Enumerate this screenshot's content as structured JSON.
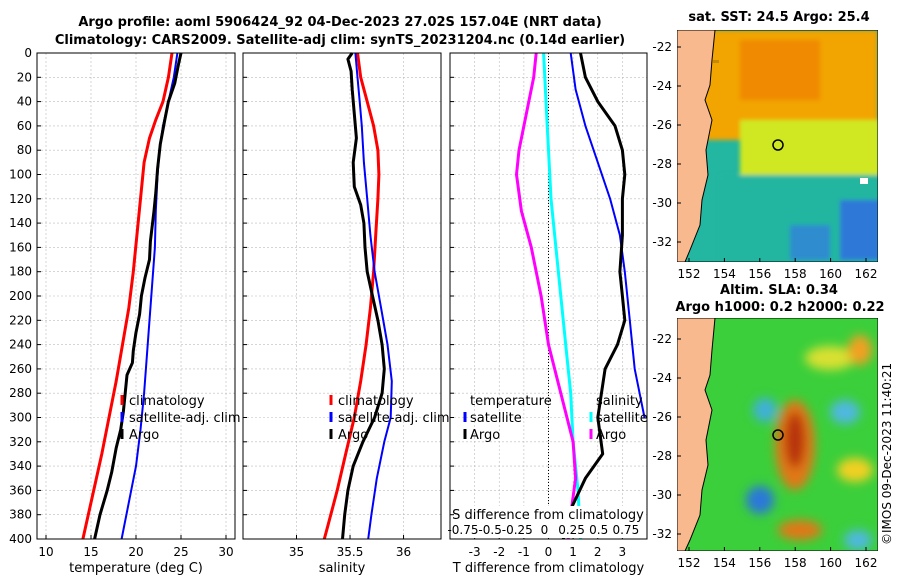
{
  "header": {
    "title_line1": "Argo profile: aoml 5906424_92 04-Dec-2023 27.02S 157.04E (NRT data)",
    "title_line2": "Climatology: CARS2009. Satellite-adj clim: synTS_20231204.nc (0.14d earlier)"
  },
  "chart_data": [
    {
      "type": "line",
      "title": "",
      "xlabel": "temperature (deg C)",
      "ylabel": "",
      "xlim": [
        9,
        31
      ],
      "ylim": [
        400,
        0
      ],
      "xticks": [
        10,
        15,
        20,
        25,
        30
      ],
      "yticks": [
        0,
        20,
        40,
        60,
        80,
        100,
        120,
        140,
        160,
        180,
        200,
        220,
        240,
        260,
        280,
        300,
        320,
        340,
        360,
        380,
        400
      ],
      "legend": [
        "climatology",
        "satellite-adj. clim",
        "Argo"
      ],
      "series": [
        {
          "name": "climatology",
          "color": "#ff0000",
          "points": [
            [
              24.0,
              0
            ],
            [
              23.6,
              20
            ],
            [
              23.0,
              40
            ],
            [
              22.2,
              55
            ],
            [
              21.5,
              70
            ],
            [
              20.9,
              90
            ],
            [
              20.5,
              120
            ],
            [
              20.1,
              150
            ],
            [
              19.7,
              180
            ],
            [
              19.2,
              210
            ],
            [
              18.5,
              240
            ],
            [
              17.8,
              270
            ],
            [
              17.0,
              300
            ],
            [
              16.2,
              330
            ],
            [
              15.3,
              360
            ],
            [
              14.4,
              390
            ],
            [
              14.1,
              400
            ]
          ],
          "stroke_width": 3
        },
        {
          "name": "satellite-adj. clim",
          "color": "#0000ff",
          "points": [
            [
              24.6,
              0
            ],
            [
              24.2,
              20
            ],
            [
              23.6,
              40
            ],
            [
              23.0,
              60
            ],
            [
              22.6,
              80
            ],
            [
              22.4,
              100
            ],
            [
              22.2,
              130
            ],
            [
              22.1,
              160
            ],
            [
              21.8,
              190
            ],
            [
              21.5,
              220
            ],
            [
              21.2,
              250
            ],
            [
              20.9,
              280
            ],
            [
              20.5,
              310
            ],
            [
              20.0,
              340
            ],
            [
              19.2,
              370
            ],
            [
              18.4,
              400
            ]
          ],
          "stroke_width": 2
        },
        {
          "name": "Argo",
          "color": "#000000",
          "points": [
            [
              25.0,
              0
            ],
            [
              24.7,
              10
            ],
            [
              24.3,
              25
            ],
            [
              23.6,
              40
            ],
            [
              23.2,
              55
            ],
            [
              22.7,
              75
            ],
            [
              22.4,
              95
            ],
            [
              22.2,
              115
            ],
            [
              22.0,
              130
            ],
            [
              21.6,
              155
            ],
            [
              21.5,
              170
            ],
            [
              21.0,
              185
            ],
            [
              20.6,
              200
            ],
            [
              20.4,
              215
            ],
            [
              20.0,
              230
            ],
            [
              19.7,
              245
            ],
            [
              19.6,
              255
            ],
            [
              19.0,
              265
            ],
            [
              18.8,
              280
            ],
            [
              18.6,
              295
            ],
            [
              18.3,
              310
            ],
            [
              17.8,
              325
            ],
            [
              17.3,
              345
            ],
            [
              16.8,
              360
            ],
            [
              16.0,
              380
            ],
            [
              15.4,
              400
            ]
          ],
          "stroke_width": 3
        }
      ]
    },
    {
      "type": "line",
      "title": "",
      "xlabel": "salinity",
      "ylabel": "",
      "xlim": [
        34.5,
        36.35
      ],
      "ylim": [
        400,
        0
      ],
      "xticks": [
        35,
        35.5,
        36
      ],
      "legend": [
        "climatology",
        "satellite-adj. clim",
        "Argo"
      ],
      "series": [
        {
          "name": "climatology",
          "color": "#ff0000",
          "points": [
            [
              35.57,
              0
            ],
            [
              35.6,
              20
            ],
            [
              35.66,
              40
            ],
            [
              35.72,
              60
            ],
            [
              35.76,
              80
            ],
            [
              35.77,
              100
            ],
            [
              35.76,
              120
            ],
            [
              35.74,
              150
            ],
            [
              35.72,
              180
            ],
            [
              35.69,
              210
            ],
            [
              35.65,
              240
            ],
            [
              35.6,
              270
            ],
            [
              35.54,
              300
            ],
            [
              35.46,
              330
            ],
            [
              35.38,
              360
            ],
            [
              35.29,
              390
            ],
            [
              35.26,
              400
            ]
          ],
          "stroke_width": 3
        },
        {
          "name": "satellite-adj. clim",
          "color": "#0000ff",
          "points": [
            [
              35.55,
              0
            ],
            [
              35.57,
              20
            ],
            [
              35.59,
              40
            ],
            [
              35.61,
              60
            ],
            [
              35.63,
              90
            ],
            [
              35.66,
              120
            ],
            [
              35.69,
              150
            ],
            [
              35.73,
              180
            ],
            [
              35.79,
              210
            ],
            [
              35.85,
              240
            ],
            [
              35.89,
              270
            ],
            [
              35.88,
              300
            ],
            [
              35.82,
              320
            ],
            [
              35.75,
              350
            ],
            [
              35.7,
              380
            ],
            [
              35.67,
              400
            ]
          ],
          "stroke_width": 2
        },
        {
          "name": "Argo",
          "color": "#000000",
          "points": [
            [
              35.52,
              0
            ],
            [
              35.48,
              5
            ],
            [
              35.51,
              15
            ],
            [
              35.52,
              30
            ],
            [
              35.54,
              50
            ],
            [
              35.56,
              70
            ],
            [
              35.53,
              90
            ],
            [
              35.54,
              110
            ],
            [
              35.6,
              125
            ],
            [
              35.63,
              140
            ],
            [
              35.64,
              160
            ],
            [
              35.66,
              180
            ],
            [
              35.71,
              200
            ],
            [
              35.76,
              220
            ],
            [
              35.8,
              240
            ],
            [
              35.82,
              260
            ],
            [
              35.8,
              280
            ],
            [
              35.73,
              300
            ],
            [
              35.62,
              320
            ],
            [
              35.53,
              340
            ],
            [
              35.48,
              360
            ],
            [
              35.45,
              380
            ],
            [
              35.43,
              400
            ]
          ],
          "stroke_width": 3
        }
      ]
    },
    {
      "type": "line",
      "title": "",
      "xlabel": "T difference from climatology",
      "xlabel_top": "S difference from climatology",
      "ylabel": "",
      "xlim": [
        -4,
        4
      ],
      "ylim": [
        400,
        0
      ],
      "xticks": [
        -3,
        -2,
        -1,
        0,
        1,
        2,
        3
      ],
      "top_xtick_labels": [
        "-0.75",
        "-0.5",
        "-0.25",
        "0",
        "0.25",
        "0.5",
        "0.75"
      ],
      "legend_left": [
        "temperature",
        "satellite",
        "Argo"
      ],
      "legend_right": [
        "salinity",
        "satellite",
        "Argo"
      ],
      "series": [
        {
          "name": "T satellite",
          "color": "#00ffff",
          "points": [
            [
              -0.2,
              0
            ],
            [
              -0.1,
              40
            ],
            [
              0.0,
              80
            ],
            [
              0.1,
              120
            ],
            [
              0.3,
              160
            ],
            [
              0.5,
              200
            ],
            [
              0.7,
              240
            ],
            [
              0.9,
              280
            ],
            [
              1.0,
              320
            ],
            [
              1.2,
              360
            ],
            [
              1.3,
              400
            ]
          ],
          "stroke_width": 3
        },
        {
          "name": "T Argo",
          "color": "#ff00ff",
          "points": [
            [
              -0.5,
              0
            ],
            [
              -0.6,
              20
            ],
            [
              -0.8,
              40
            ],
            [
              -1.0,
              60
            ],
            [
              -1.2,
              80
            ],
            [
              -1.3,
              100
            ],
            [
              -1.1,
              130
            ],
            [
              -0.7,
              160
            ],
            [
              -0.3,
              200
            ],
            [
              0.0,
              240
            ],
            [
              0.5,
              280
            ],
            [
              1.0,
              320
            ],
            [
              1.1,
              350
            ],
            [
              0.9,
              380
            ],
            [
              0.8,
              400
            ]
          ],
          "stroke_width": 3
        },
        {
          "name": "S satellite",
          "color": "#0000ff",
          "points": [
            [
              0.9,
              0
            ],
            [
              1.1,
              30
            ],
            [
              1.5,
              60
            ],
            [
              2.0,
              90
            ],
            [
              2.5,
              120
            ],
            [
              2.9,
              150
            ],
            [
              3.1,
              180
            ],
            [
              3.3,
              220
            ],
            [
              3.5,
              260
            ],
            [
              3.9,
              300
            ]
          ],
          "stroke_width": 2
        },
        {
          "name": "S Argo",
          "color": "#000000",
          "points": [
            [
              1.3,
              0
            ],
            [
              1.5,
              20
            ],
            [
              2.0,
              40
            ],
            [
              2.7,
              60
            ],
            [
              3.0,
              80
            ],
            [
              3.1,
              100
            ],
            [
              3.0,
              120
            ],
            [
              3.0,
              150
            ],
            [
              2.9,
              180
            ],
            [
              3.0,
              200
            ],
            [
              3.1,
              220
            ],
            [
              2.8,
              240
            ],
            [
              2.3,
              260
            ],
            [
              2.0,
              300
            ],
            [
              2.2,
              330
            ],
            [
              1.5,
              350
            ],
            [
              0.8,
              380
            ],
            [
              0.6,
              400
            ]
          ],
          "stroke_width": 3
        }
      ]
    }
  ],
  "maps": {
    "sst": {
      "title": "sat. SST: 24.5 Argo: 25.4",
      "xticks": [
        "152",
        "154",
        "156",
        "158",
        "160",
        "162"
      ],
      "yticks": [
        "-22",
        "-24",
        "-26",
        "-28",
        "-30",
        "-32"
      ]
    },
    "sla": {
      "title_line1": "Altim. SLA: 0.34",
      "title_line2": "Argo h1000: 0.2 h2000: 0.22",
      "xticks": [
        "152",
        "154",
        "156",
        "158",
        "160",
        "162"
      ],
      "yticks": [
        "-22",
        "-24",
        "-26",
        "-28",
        "-30",
        "-32"
      ]
    }
  },
  "credit": "©IMOS 09-Dec-2023 11:40:21",
  "colors": {
    "land": "#f7b98d",
    "sst_warm": "#f2a400",
    "sst_mid": "#cfe824",
    "sst_cool": "#23b6a0",
    "sla_base": "#3bcf3b"
  }
}
